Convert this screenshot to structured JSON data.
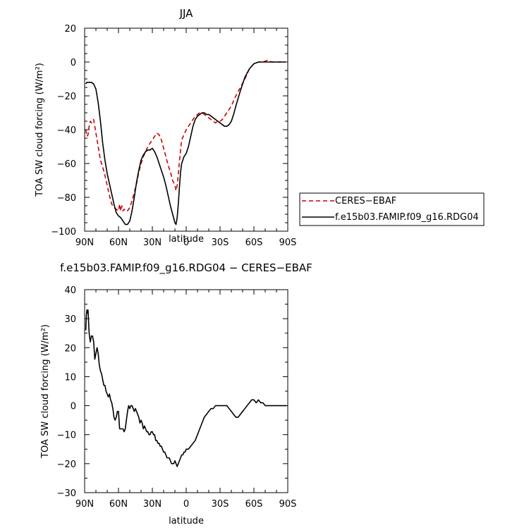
{
  "chart_data": [
    {
      "type": "line",
      "title": "JJA",
      "xlabel": "latitude",
      "ylabel": "TOA SW cloud forcing (W/m²)",
      "xlim": [
        90,
        -90
      ],
      "ylim": [
        -100,
        20
      ],
      "x_tick_values": [
        90,
        60,
        30,
        0,
        -30,
        -60,
        -90
      ],
      "x_tick_labels": [
        "90N",
        "60N",
        "30N",
        "0",
        "30S",
        "60S",
        "90S"
      ],
      "y_tick_values": [
        20,
        0,
        -20,
        -40,
        -60,
        -80,
        -100
      ],
      "y_tick_labels": [
        "20",
        "0",
        "−20",
        "−40",
        "−60",
        "−80",
        "−100"
      ],
      "legend_position": "right",
      "series": [
        {
          "name": "CERES−EBAF",
          "color": "#cc0000",
          "dash": "dashed",
          "x": [
            89,
            88,
            87,
            86,
            85,
            84,
            82,
            80,
            78,
            76,
            74,
            72,
            70,
            68,
            66,
            64,
            62,
            60,
            59,
            58,
            57,
            56,
            55,
            54,
            52,
            50,
            48,
            46,
            44,
            42,
            40,
            38,
            36,
            34,
            32,
            30,
            28,
            26,
            24,
            22,
            20,
            18,
            16,
            14,
            12,
            10,
            9,
            8,
            7,
            6,
            5,
            4,
            2,
            0,
            -2,
            -4,
            -6,
            -8,
            -10,
            -12,
            -14,
            -16,
            -18,
            -20,
            -22,
            -24,
            -26,
            -28,
            -30,
            -32,
            -34,
            -36,
            -38,
            -40,
            -44,
            -48,
            -52,
            -56,
            -60,
            -64,
            -68,
            -72,
            -76,
            -78,
            -80,
            -84,
            -88
          ],
          "y": [
            -40,
            -44,
            -43,
            -38,
            -35,
            -36,
            -34,
            -42,
            -50,
            -58,
            -62,
            -67,
            -73,
            -79,
            -84,
            -86,
            -87,
            -88,
            -84,
            -88,
            -85,
            -88,
            -87,
            -88,
            -88,
            -86,
            -82,
            -77,
            -72,
            -65,
            -60,
            -56,
            -53,
            -50,
            -48,
            -46,
            -44,
            -42,
            -43,
            -46,
            -51,
            -56,
            -61,
            -65,
            -70,
            -73,
            -76,
            -73,
            -66,
            -59,
            -52,
            -46,
            -43,
            -40,
            -38,
            -36,
            -34,
            -32,
            -31,
            -30,
            -30,
            -31,
            -32,
            -33,
            -34,
            -35,
            -36,
            -35,
            -35,
            -34,
            -32,
            -30,
            -28,
            -26,
            -20,
            -15,
            -10,
            -4,
            -1,
            0,
            0,
            1,
            0,
            0,
            0,
            0,
            0
          ]
        },
        {
          "name": "f.e15b03.FAMIP.f09_g16.RDG04",
          "color": "#000000",
          "dash": "solid",
          "x": [
            89,
            88,
            86,
            84,
            82,
            80,
            78,
            76,
            74,
            72,
            70,
            68,
            66,
            64,
            62,
            60,
            58,
            56,
            54,
            52,
            50,
            48,
            46,
            44,
            42,
            40,
            38,
            36,
            34,
            32,
            30,
            28,
            26,
            24,
            22,
            20,
            18,
            16,
            14,
            12,
            10,
            9,
            8,
            7,
            6,
            5,
            4,
            3,
            2,
            0,
            -2,
            -4,
            -6,
            -8,
            -10,
            -12,
            -14,
            -16,
            -18,
            -20,
            -22,
            -24,
            -26,
            -28,
            -30,
            -32,
            -34,
            -36,
            -38,
            -40,
            -42,
            -44,
            -48,
            -52,
            -56,
            -60,
            -64,
            -68,
            -72,
            -76,
            -80,
            -84,
            -88
          ],
          "y": [
            -13,
            -12,
            -12,
            -12,
            -13,
            -16,
            -24,
            -35,
            -48,
            -58,
            -66,
            -72,
            -78,
            -84,
            -89,
            -91,
            -92,
            -94,
            -96,
            -96,
            -94,
            -88,
            -80,
            -71,
            -64,
            -58,
            -55,
            -53,
            -52,
            -52,
            -51,
            -53,
            -56,
            -60,
            -64,
            -68,
            -73,
            -79,
            -85,
            -90,
            -95,
            -96,
            -92,
            -84,
            -74,
            -65,
            -60,
            -58,
            -56,
            -54,
            -50,
            -44,
            -38,
            -34,
            -32,
            -31,
            -30,
            -30,
            -31,
            -31,
            -32,
            -33,
            -34,
            -35,
            -36,
            -37,
            -38,
            -38,
            -37,
            -35,
            -31,
            -26,
            -17,
            -9,
            -4,
            -1,
            0,
            0,
            0,
            0,
            0,
            0,
            0
          ]
        }
      ]
    },
    {
      "type": "line",
      "title": "f.e15b03.FAMIP.f09_g16.RDG04 − CERES−EBAF",
      "xlabel": "latitude",
      "ylabel": "TOA SW cloud forcing (W/m²)",
      "xlim": [
        90,
        -90
      ],
      "ylim": [
        -30,
        40
      ],
      "x_tick_values": [
        90,
        60,
        30,
        0,
        -30,
        -60,
        -90
      ],
      "x_tick_labels": [
        "90N",
        "60N",
        "30N",
        "0",
        "30S",
        "60S",
        "90S"
      ],
      "y_tick_values": [
        40,
        30,
        20,
        10,
        0,
        -10,
        -20,
        -30
      ],
      "y_tick_labels": [
        "40",
        "30",
        "20",
        "10",
        "0",
        "−10",
        "−20",
        "−30"
      ],
      "series": [
        {
          "color": "#000000",
          "dash": "solid",
          "x": [
            89,
            88.5,
            88,
            87.5,
            87,
            86.5,
            86,
            85,
            84,
            83,
            82,
            81,
            80,
            79,
            78,
            77,
            76,
            75,
            74,
            73,
            72,
            71,
            70,
            69,
            68,
            67,
            66,
            65,
            64,
            63,
            62,
            61,
            60,
            59,
            58,
            57,
            56,
            55,
            54,
            53,
            52,
            51,
            50,
            49,
            48,
            47,
            46,
            45,
            44,
            43,
            42,
            41,
            40,
            39,
            38,
            37,
            36,
            35,
            34,
            33,
            32,
            31,
            30,
            29,
            28,
            27,
            26,
            25,
            24,
            23,
            22,
            21,
            20,
            19,
            18,
            17,
            16,
            15,
            14,
            13,
            12,
            11,
            10,
            9,
            8,
            7,
            6,
            5,
            4,
            3,
            2,
            1,
            0,
            -2,
            -4,
            -6,
            -8,
            -10,
            -12,
            -14,
            -16,
            -18,
            -20,
            -22,
            -24,
            -26,
            -28,
            -30,
            -32,
            -34,
            -36,
            -38,
            -40,
            -42,
            -44,
            -46,
            -48,
            -50,
            -52,
            -54,
            -56,
            -58,
            -60,
            -62,
            -64,
            -66,
            -68,
            -70,
            -72,
            -74,
            -76,
            -78,
            -80,
            -82,
            -84,
            -86,
            -88,
            -89
          ],
          "y": [
            26,
            31,
            33,
            32,
            33,
            29,
            25,
            22,
            24,
            24,
            22,
            16,
            18,
            20,
            18,
            14,
            12,
            11,
            9,
            7,
            7,
            5,
            4,
            3,
            4,
            2,
            1,
            -1,
            -4,
            -5,
            -4,
            -2,
            -2,
            -8,
            -8,
            -8,
            -8,
            -9,
            -8,
            -5,
            -2,
            0,
            -1,
            0,
            0,
            -1,
            -2,
            -1,
            -2,
            -3,
            -4,
            -6,
            -5,
            -6,
            -8,
            -7,
            -8,
            -9,
            -9,
            -10,
            -10,
            -9,
            -9,
            -10,
            -10,
            -12,
            -12,
            -13,
            -13,
            -14,
            -14,
            -15,
            -16,
            -16,
            -17,
            -18,
            -18,
            -18,
            -19,
            -20,
            -20,
            -20,
            -19,
            -20,
            -21,
            -20,
            -19,
            -18,
            -17,
            -17,
            -16,
            -16,
            -15,
            -15,
            -14,
            -13,
            -12,
            -10,
            -8,
            -6,
            -4,
            -3,
            -2,
            -1,
            -1,
            0,
            0,
            0,
            0,
            0,
            0,
            -1,
            -2,
            -3,
            -4,
            -4,
            -3,
            -2,
            -1,
            0,
            1,
            2,
            2,
            1,
            2,
            1,
            1,
            0,
            0,
            0,
            0,
            0,
            0,
            0,
            0,
            0,
            0,
            0
          ]
        }
      ]
    }
  ]
}
